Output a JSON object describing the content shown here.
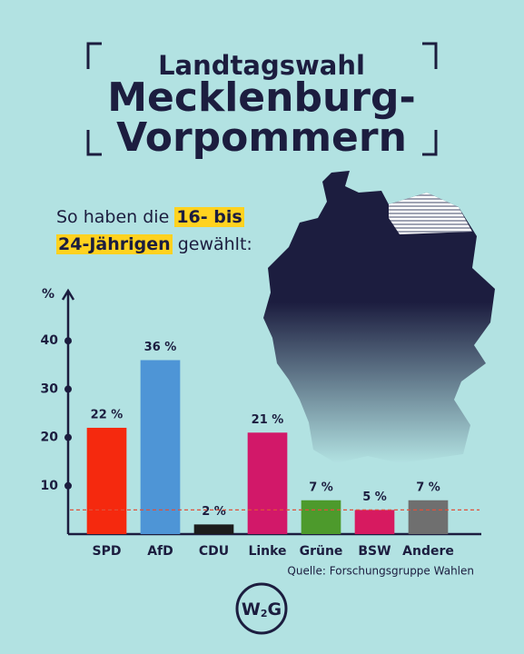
{
  "chart_data": {
    "type": "bar",
    "title": [
      "Landtagswahl",
      "Mecklenburg-",
      "Vorpommern"
    ],
    "y_label": "%",
    "categories": [
      "SPD",
      "AfD",
      "CDU",
      "Linke",
      "Grüne",
      "BSW",
      "Andere"
    ],
    "values": [
      22,
      36,
      2,
      21,
      7,
      5,
      7
    ],
    "value_labels": [
      "22 %",
      "36 %",
      "2 %",
      "21 %",
      "7 %",
      "5 %",
      "7 %"
    ],
    "colors": [
      "#f5290e",
      "#4e95d6",
      "#1c1c1c",
      "#d21869",
      "#4d9a2c",
      "#d71a60",
      "#6f6f6f"
    ],
    "ylim": [
      0,
      50
    ],
    "yticks": [
      10,
      20,
      30,
      40
    ],
    "reference_line": {
      "value": 5,
      "color": "#e0503a"
    }
  },
  "subtitle": {
    "line1": "So haben die",
    "line1_highlight": "16- bis",
    "line2_highlight": "24-Jährigen",
    "line2": "gewählt:"
  },
  "source": "Quelle: Forschungsgruppe Wahlen",
  "logo": [
    "W",
    "2",
    "G"
  ]
}
